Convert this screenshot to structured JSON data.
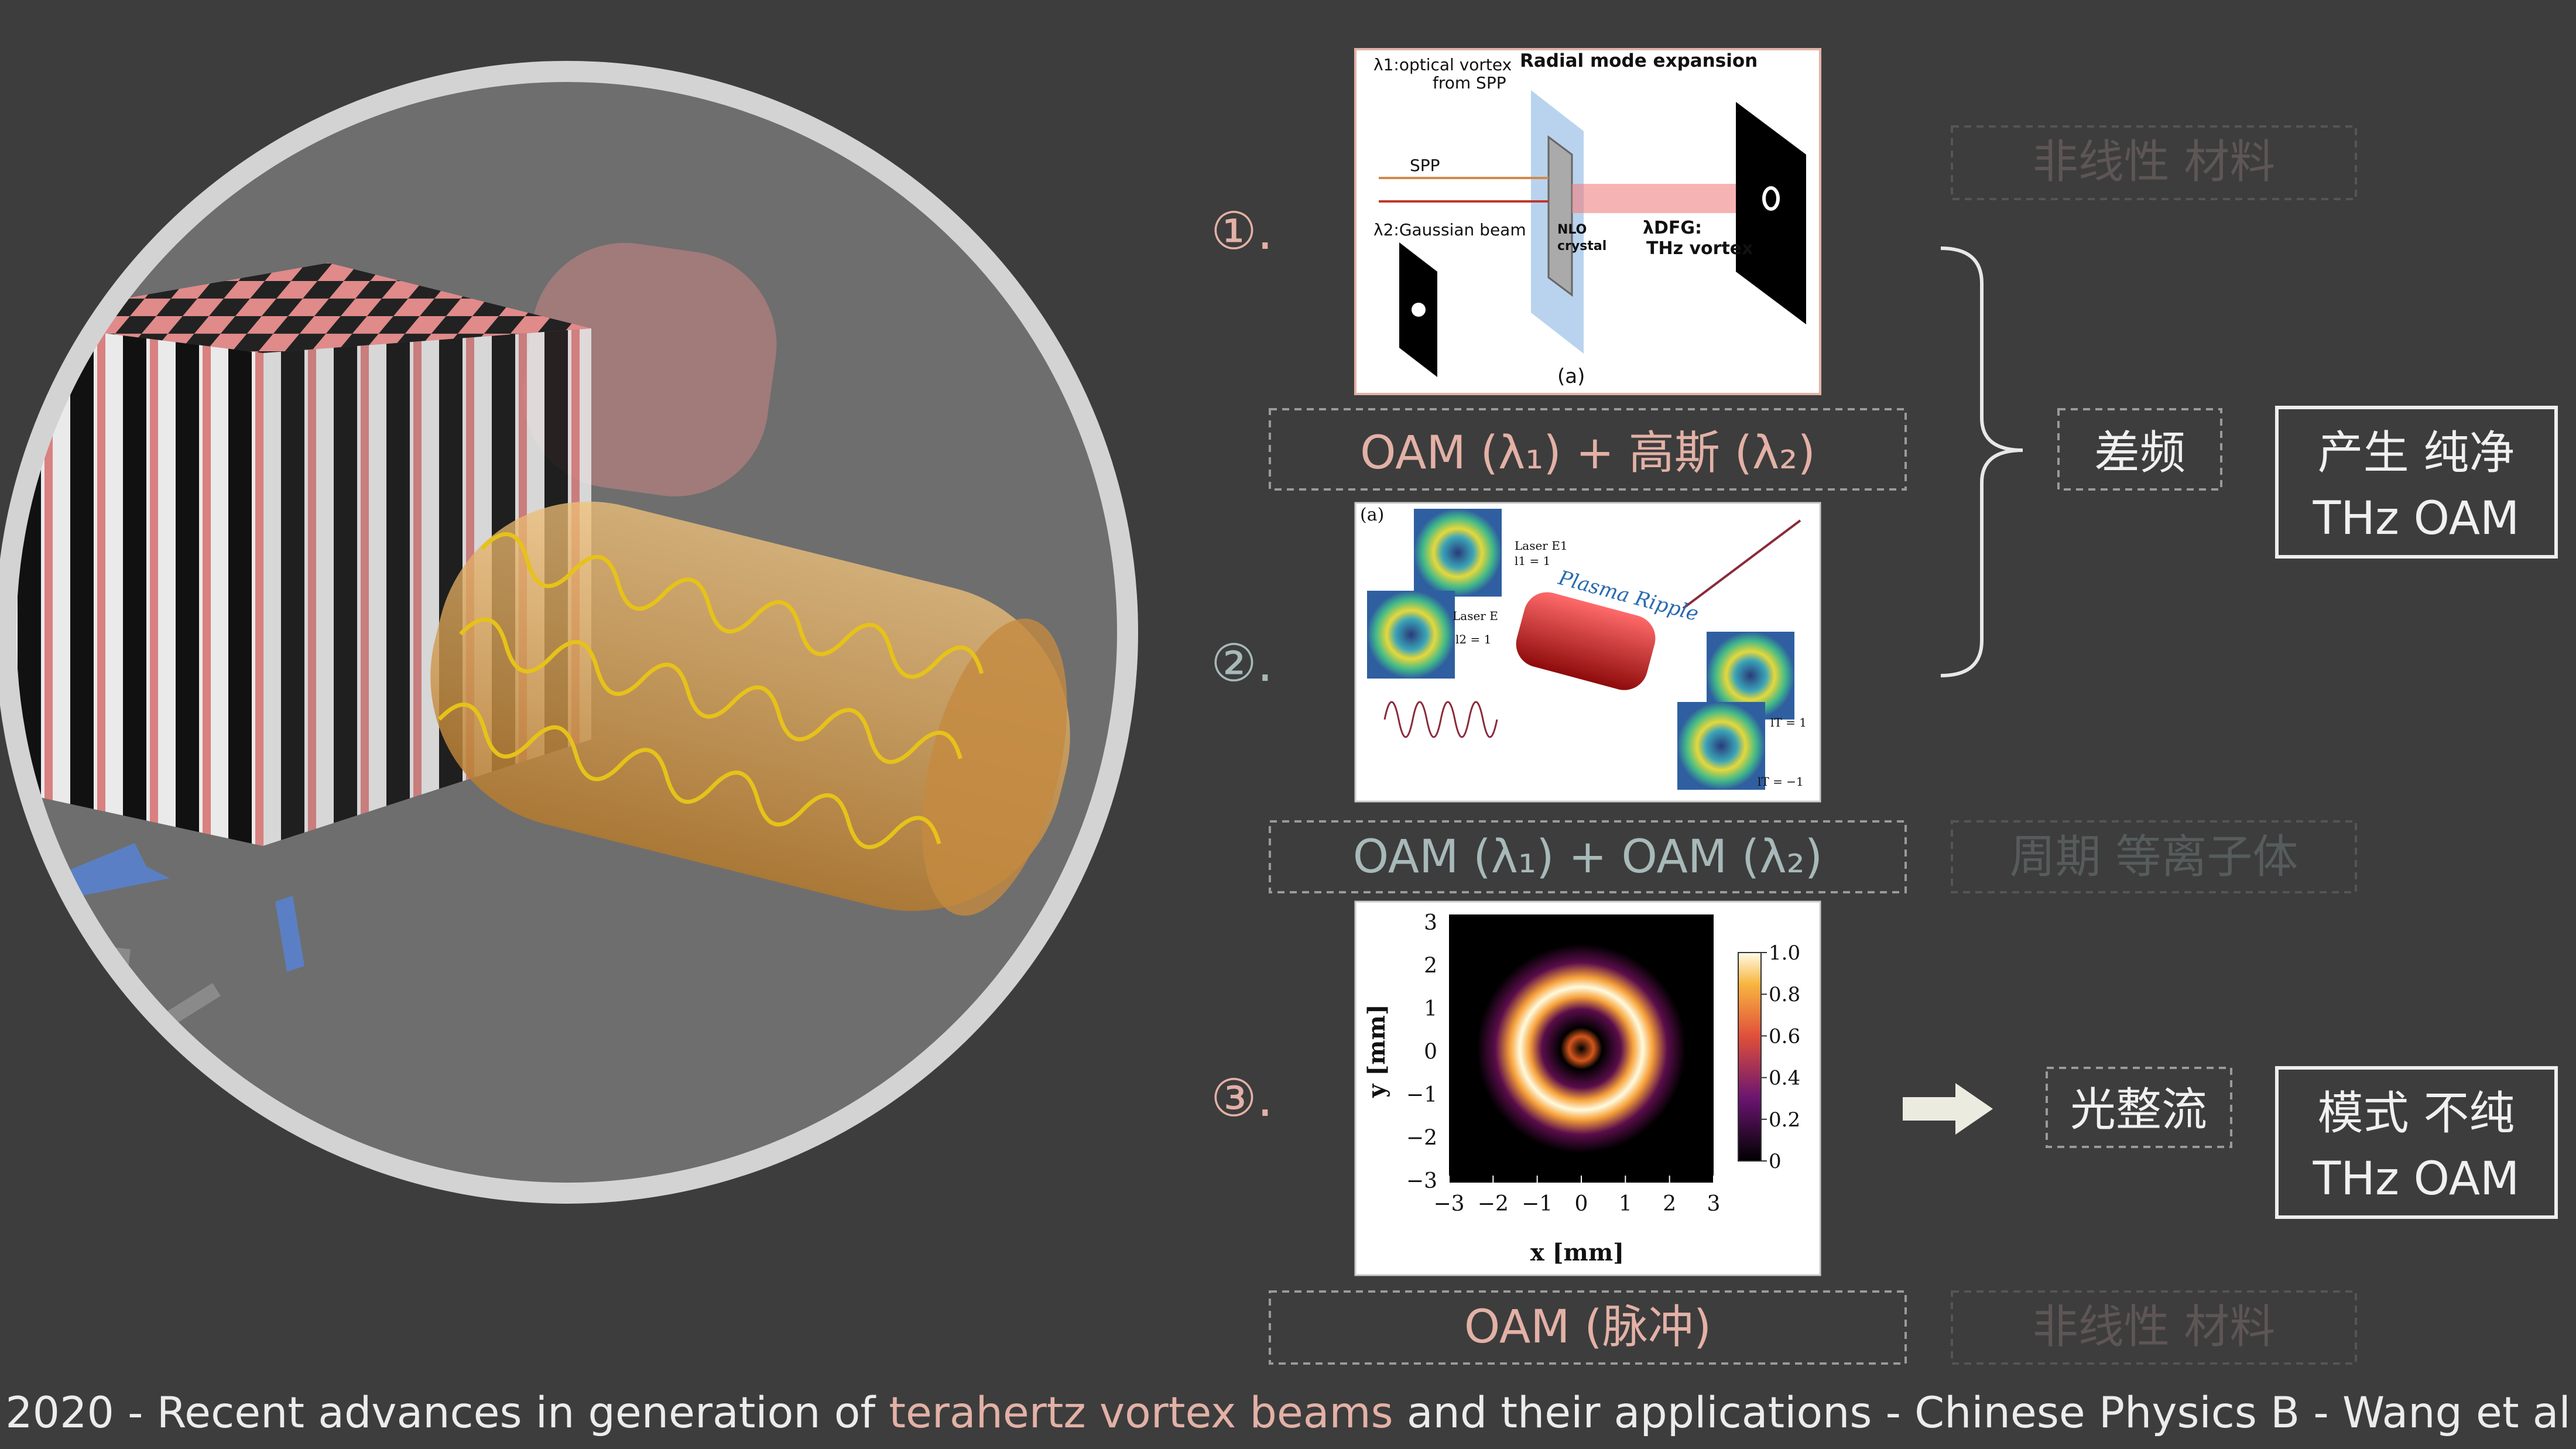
{
  "steps": [
    {
      "number": "①.",
      "source": "OAM (λ₁) + 高斯 (λ₂)",
      "material": "非线性 材料"
    },
    {
      "number": "②.",
      "source": "OAM (λ₁) + OAM (λ₂)",
      "material": "周期 等离子体"
    },
    {
      "number": "③.",
      "source": "OAM (脉冲)",
      "material": "非线性 材料"
    }
  ],
  "processes": [
    {
      "label": "差频",
      "result": [
        "产生 纯净",
        "THz OAM"
      ]
    },
    {
      "label": "光整流",
      "result": [
        "模式 不纯",
        "THz OAM"
      ]
    }
  ],
  "figures": {
    "dfg": {
      "vortex_source": [
        "λ1:optical vortex",
        "from SPP"
      ],
      "expansion": "Radial mode expansion",
      "spp": "SPP",
      "gaussian": "λ2:Gaussian beam",
      "crystal": [
        "NLO",
        "crystal"
      ],
      "output": [
        "λDFG:",
        "THz vortex"
      ],
      "panel": "(a)"
    },
    "plasma": {
      "panel": "(a)",
      "ripple": "Plasma Ripple",
      "laser1": [
        "Laser E1",
        "l1 = 1"
      ],
      "laser2": [
        "Laser E",
        "l2 = 1"
      ],
      "out1": "lT = 1",
      "out2": "lT = −1"
    },
    "profile": {
      "xlabel": "x [mm]",
      "ylabel": "y [mm]",
      "xticks": [
        "−3",
        "−2",
        "−1",
        "0",
        "1",
        "2",
        "3"
      ],
      "yticks": [
        "3",
        "2",
        "1",
        "0",
        "−1",
        "−2",
        "−3"
      ],
      "cbar_ticks": [
        "1.0",
        "0.8",
        "0.6",
        "0.4",
        "0.2",
        "0"
      ]
    }
  },
  "footer": {
    "before": "2020 - Recent advances in generation of ",
    "highlight": "terahertz vortex beams",
    "after": " and their applications - Chinese Physics B - Wang et al"
  }
}
